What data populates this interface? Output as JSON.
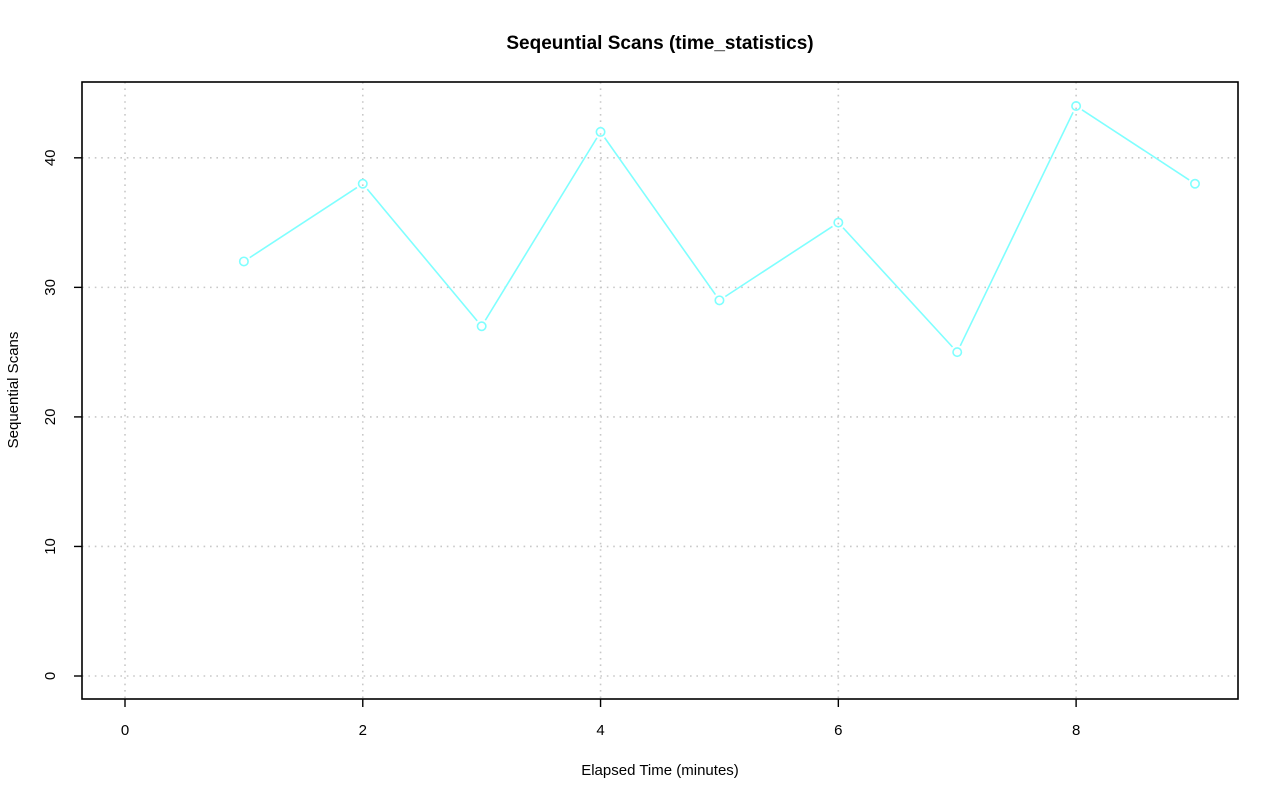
{
  "chart_data": {
    "type": "line",
    "title": "Seqeuntial Scans (time_statistics)",
    "xlabel": "Elapsed Time (minutes)",
    "ylabel": "Sequential Scans",
    "xlim": [
      0,
      9
    ],
    "ylim": [
      0,
      44
    ],
    "x_ticks": [
      0,
      2,
      4,
      6,
      8
    ],
    "y_ticks": [
      0,
      10,
      20,
      30,
      40
    ],
    "grid": true,
    "series": [
      {
        "x": [
          1,
          2,
          3,
          4,
          5,
          6,
          7,
          8,
          9
        ],
        "values": [
          32,
          38,
          27,
          42,
          29,
          35,
          25,
          44,
          38
        ],
        "color": "#7fffff",
        "marker": "open-circle"
      }
    ]
  }
}
